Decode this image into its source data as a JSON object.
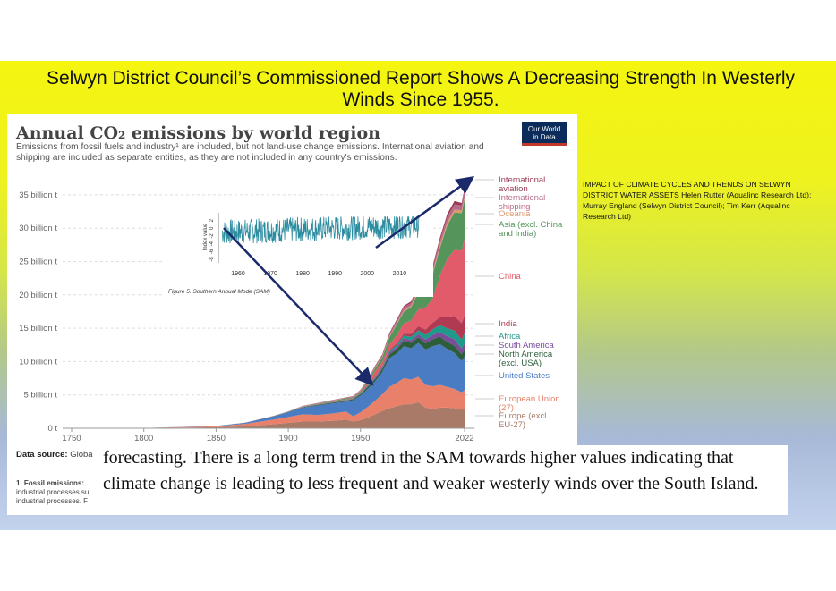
{
  "slide": {
    "title": "Selwyn District Council’s Commissioned Report Shows A Decreasing Strength In Westerly Winds Since 1955.",
    "side_note": "IMPACT OF CLIMATE CYCLES AND TRENDS ON SELWYN DISTRICT WATER ASSETS Helen Rutter (Aqualinc Research Ltd); Murray England (Selwyn District Council); Tim Kerr (Aqualinc Research Ltd)",
    "quote": "forecasting. There is a long term trend in the SAM towards higher values indicating that climate change is leading to less frequent and weaker westerly winds over the South Island."
  },
  "owid": {
    "title": "Annual CO₂ emissions by world region",
    "subtitle": "Emissions from fossil fuels and industry¹ are included, but not land-use change emissions. International aviation and shipping are included as separate entities, as they are not included in any country's emissions.",
    "logo_line1": "Our World",
    "logo_line2": "in Data",
    "data_source_label": "Data source:",
    "data_source_text": "Globa",
    "footnote_label": "1. Fossil emissions:",
    "footnote_line2": "industrial processes su",
    "footnote_line3": "industrial processes. F"
  },
  "colors": {
    "europe": "#a97a67",
    "eu27": "#e8806a",
    "united_states": "#4a7cc4",
    "north_america": "#2d5e3b",
    "south_america": "#7a4d9a",
    "africa": "#1e9a8a",
    "india": "#b03a52",
    "china": "#e25b6a",
    "asia": "#55955b",
    "oceania": "#d99a6c",
    "shipping": "#b76b8a",
    "aviation": "#9a3b55",
    "arrow": "#1a2a6b",
    "sam_line": "#2b8ca0"
  },
  "chart_data": [
    {
      "type": "area",
      "title": "Annual CO₂ emissions by world region",
      "ylabel": "",
      "xlabel": "",
      "x": [
        1750,
        1800,
        1850,
        1870,
        1890,
        1900,
        1910,
        1920,
        1930,
        1940,
        1945,
        1950,
        1955,
        1960,
        1965,
        1970,
        1975,
        1980,
        1985,
        1990,
        1995,
        2000,
        2005,
        2010,
        2015,
        2020,
        2022
      ],
      "xticks": [
        "1750",
        "1800",
        "1850",
        "1900",
        "1950",
        "2022"
      ],
      "yticks": [
        "0 t",
        "5 billion t",
        "10 billion t",
        "15 billion t",
        "20 billion t",
        "25 billion t",
        "30 billion t",
        "35 billion t"
      ],
      "ylim": [
        0,
        37
      ],
      "series": [
        {
          "name": "Europe (excl. EU-27)",
          "key": "europe",
          "values": [
            0,
            0.01,
            0.15,
            0.3,
            0.6,
            0.8,
            1.0,
            1.0,
            1.1,
            1.3,
            1.0,
            1.2,
            1.6,
            2.1,
            2.6,
            3.0,
            3.3,
            3.6,
            3.6,
            3.9,
            3.1,
            2.9,
            3.1,
            3.1,
            3.0,
            2.8,
            2.9
          ]
        },
        {
          "name": "European Union (27)",
          "key": "eu27",
          "values": [
            0.01,
            0.02,
            0.15,
            0.35,
            0.7,
            0.9,
            1.1,
            1.0,
            1.1,
            1.2,
            0.8,
            1.2,
            1.6,
            2.0,
            2.5,
            3.2,
            3.5,
            3.9,
            3.7,
            3.8,
            3.4,
            3.4,
            3.4,
            3.1,
            2.9,
            2.6,
            2.8
          ]
        },
        {
          "name": "United States",
          "key": "united_states",
          "values": [
            0,
            0.005,
            0.05,
            0.15,
            0.5,
            0.7,
            1.0,
            1.4,
            1.5,
            1.5,
            2.4,
            2.5,
            2.7,
            2.9,
            3.3,
            4.3,
            4.4,
            4.8,
            4.7,
            5.1,
            5.3,
            6.0,
            6.1,
            5.7,
            5.4,
            4.7,
            5.1
          ]
        },
        {
          "name": "North America (excl. USA)",
          "key": "north_america",
          "values": [
            0,
            0,
            0.005,
            0.01,
            0.03,
            0.04,
            0.07,
            0.1,
            0.12,
            0.13,
            0.17,
            0.2,
            0.3,
            0.35,
            0.45,
            0.55,
            0.65,
            0.8,
            0.8,
            0.85,
            0.95,
            1.05,
            1.15,
            1.05,
            1.1,
            1.0,
            1.05
          ]
        },
        {
          "name": "South America",
          "key": "south_america",
          "values": [
            0,
            0,
            0,
            0,
            0.005,
            0.01,
            0.02,
            0.03,
            0.04,
            0.05,
            0.06,
            0.08,
            0.12,
            0.15,
            0.2,
            0.27,
            0.33,
            0.4,
            0.4,
            0.45,
            0.55,
            0.65,
            0.7,
            0.85,
            0.95,
            0.85,
            0.9
          ]
        },
        {
          "name": "Africa",
          "key": "africa",
          "values": [
            0,
            0,
            0,
            0,
            0.002,
            0.005,
            0.01,
            0.02,
            0.03,
            0.04,
            0.05,
            0.07,
            0.1,
            0.12,
            0.17,
            0.22,
            0.3,
            0.4,
            0.5,
            0.6,
            0.7,
            0.85,
            1.0,
            1.2,
            1.3,
            1.35,
            1.45
          ]
        },
        {
          "name": "India",
          "key": "india",
          "values": [
            0,
            0,
            0,
            0.005,
            0.01,
            0.02,
            0.03,
            0.04,
            0.05,
            0.05,
            0.06,
            0.07,
            0.09,
            0.12,
            0.16,
            0.2,
            0.25,
            0.3,
            0.45,
            0.6,
            0.8,
            1.0,
            1.2,
            1.7,
            2.2,
            2.45,
            2.8
          ]
        },
        {
          "name": "China",
          "key": "china",
          "values": [
            0,
            0,
            0,
            0,
            0,
            0.005,
            0.01,
            0.02,
            0.03,
            0.05,
            0.03,
            0.08,
            0.3,
            0.8,
            0.5,
            0.8,
            1.2,
            1.5,
            2.0,
            2.5,
            3.3,
            3.6,
            6.2,
            8.7,
            9.9,
            10.9,
            11.4
          ]
        },
        {
          "name": "Asia (excl. China and India)",
          "key": "asia",
          "values": [
            0,
            0,
            0.003,
            0.005,
            0.01,
            0.02,
            0.05,
            0.08,
            0.12,
            0.18,
            0.1,
            0.2,
            0.3,
            0.45,
            0.7,
            1.1,
            1.6,
            1.8,
            2.0,
            2.6,
            3.2,
            3.6,
            4.2,
            5.0,
            5.6,
            5.6,
            5.9
          ]
        },
        {
          "name": "Oceania",
          "key": "oceania",
          "values": [
            0,
            0,
            0.001,
            0.003,
            0.008,
            0.01,
            0.015,
            0.02,
            0.025,
            0.03,
            0.035,
            0.045,
            0.06,
            0.08,
            0.1,
            0.13,
            0.17,
            0.2,
            0.24,
            0.3,
            0.33,
            0.38,
            0.43,
            0.45,
            0.45,
            0.43,
            0.44
          ]
        },
        {
          "name": "International shipping",
          "key": "shipping",
          "values": [
            0,
            0,
            0,
            0.01,
            0.02,
            0.04,
            0.06,
            0.08,
            0.1,
            0.11,
            0.12,
            0.14,
            0.17,
            0.22,
            0.28,
            0.36,
            0.42,
            0.45,
            0.4,
            0.45,
            0.5,
            0.6,
            0.7,
            0.8,
            0.75,
            0.75,
            0.78
          ]
        },
        {
          "name": "International aviation",
          "key": "aviation",
          "values": [
            0,
            0,
            0,
            0,
            0,
            0,
            0,
            0,
            0,
            0,
            0.01,
            0.02,
            0.04,
            0.07,
            0.1,
            0.15,
            0.18,
            0.2,
            0.24,
            0.3,
            0.33,
            0.37,
            0.42,
            0.45,
            0.52,
            0.35,
            0.48
          ]
        }
      ],
      "legend_labels": [
        {
          "key": "aviation",
          "lines": [
            "International",
            "aviation"
          ]
        },
        {
          "key": "shipping",
          "lines": [
            "International",
            "shipping"
          ]
        },
        {
          "key": "oceania",
          "lines": [
            "Oceania"
          ]
        },
        {
          "key": "asia",
          "lines": [
            "Asia (excl. China",
            "and India)"
          ]
        },
        {
          "key": "china",
          "lines": [
            "China"
          ]
        },
        {
          "key": "india",
          "lines": [
            "India"
          ]
        },
        {
          "key": "africa",
          "lines": [
            "Africa"
          ]
        },
        {
          "key": "south_america",
          "lines": [
            "South America"
          ]
        },
        {
          "key": "north_america",
          "lines": [
            "North America",
            "(excl. USA)"
          ]
        },
        {
          "key": "united_states",
          "lines": [
            "United States"
          ]
        },
        {
          "key": "eu27",
          "lines": [
            "European Union",
            "(27)"
          ]
        },
        {
          "key": "europe",
          "lines": [
            "Europe (excl.",
            "EU-27)"
          ]
        }
      ],
      "legend_placement": "right",
      "grid": true
    },
    {
      "type": "line",
      "title": "",
      "caption": "Figure 5. Southern Annual Mode (SAM)",
      "ylabel": "Index value",
      "xlim": [
        1955,
        2016
      ],
      "ylim": [
        -8,
        4
      ],
      "xticks": [
        "1960",
        "1970",
        "1980",
        "1990",
        "2000",
        "2010"
      ],
      "yticks": [
        "-8",
        "-6",
        "-4",
        "-2",
        "0",
        "2"
      ],
      "series": [
        {
          "name": "",
          "values_note": "monthly SAM index, oscillating roughly between -5 and +3 with upward trend"
        }
      ],
      "grid": false
    }
  ]
}
